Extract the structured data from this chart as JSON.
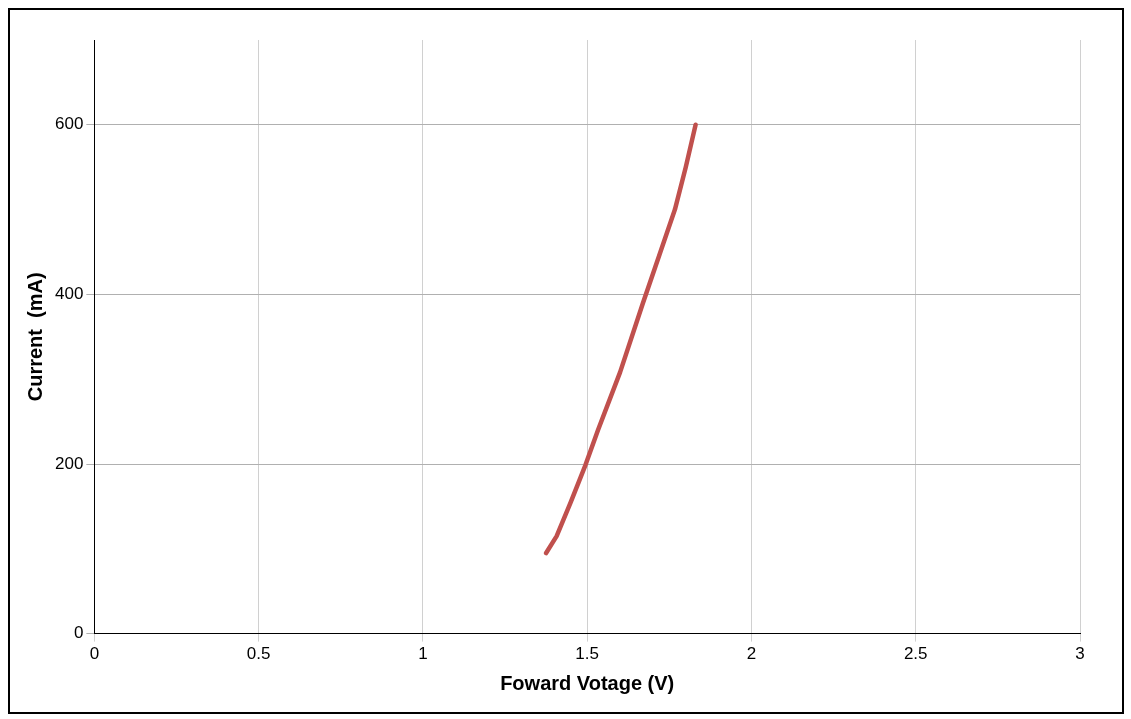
{
  "chart_data": {
    "type": "line",
    "xlabel": "Foward Votage (V)",
    "ylabel": "Current  (mA)",
    "x": [
      1.375,
      1.407,
      1.45,
      1.495,
      1.533,
      1.6,
      1.669,
      1.707,
      1.767,
      1.8,
      1.83
    ],
    "series": [
      {
        "color": "#c0504d",
        "values": [
          95,
          115,
          155,
          199,
          240,
          308,
          389,
          432,
          500,
          550,
          600
        ]
      }
    ],
    "xlim": [
      0,
      3
    ],
    "xticks": [
      0,
      0.5,
      1,
      1.5,
      2,
      2.5,
      3
    ],
    "ylim": [
      0,
      700
    ],
    "yticks": [
      0,
      200,
      400,
      600
    ],
    "grid": true,
    "legend": false,
    "marker": "none",
    "line_style": "solid"
  }
}
